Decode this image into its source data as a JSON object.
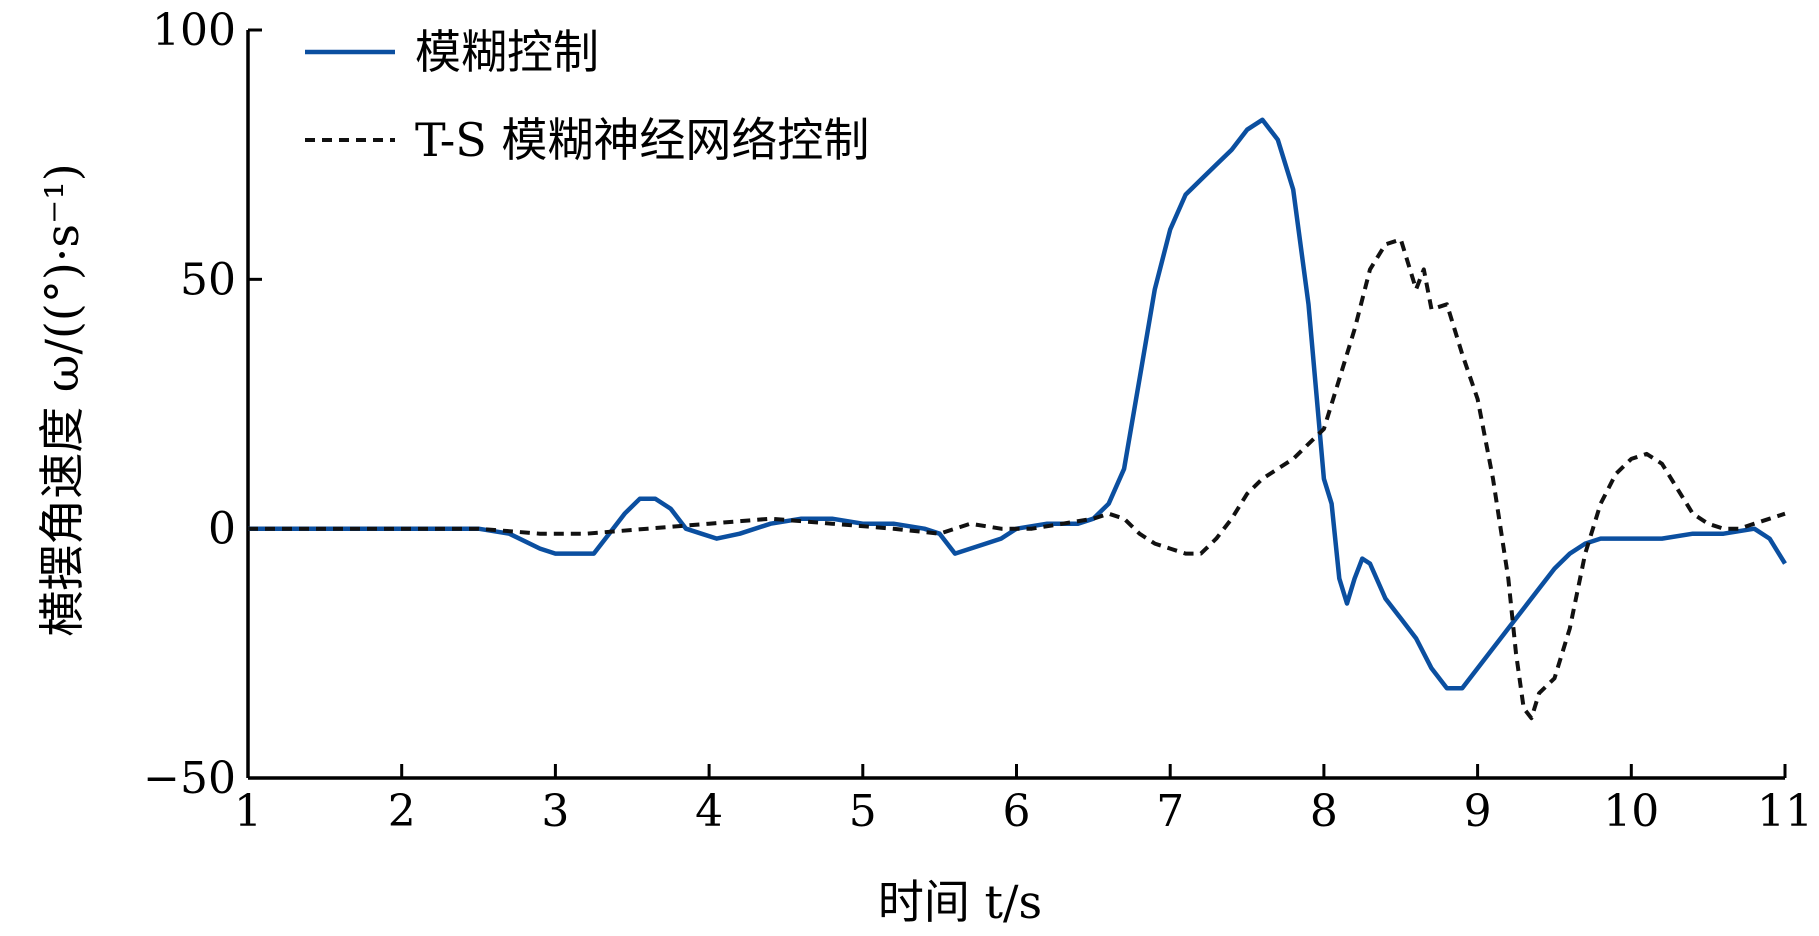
{
  "chart_data": {
    "type": "line",
    "xlabel": "时间 t/s",
    "ylabel": "横摆角速度 ω/((°)·s⁻¹)",
    "xlim": [
      1,
      11
    ],
    "ylim": [
      -50,
      100
    ],
    "xticks": [
      1,
      2,
      3,
      4,
      5,
      6,
      7,
      8,
      9,
      10,
      11
    ],
    "yticks": [
      -50,
      0,
      50,
      100
    ],
    "xtick_labels": [
      "1",
      "2",
      "3",
      "4",
      "5",
      "6",
      "7",
      "8",
      "9",
      "10",
      "11"
    ],
    "ytick_labels": [
      "−50",
      "0",
      "50",
      "100"
    ],
    "grid": false,
    "legend_position": "top-left",
    "series": [
      {
        "name": "模糊控制",
        "color": "#0b4fa0",
        "style": "solid",
        "points": [
          [
            1.0,
            0
          ],
          [
            2.0,
            0
          ],
          [
            2.5,
            0
          ],
          [
            2.7,
            -1
          ],
          [
            2.9,
            -4
          ],
          [
            3.0,
            -5
          ],
          [
            3.15,
            -5
          ],
          [
            3.25,
            -5
          ],
          [
            3.35,
            -1
          ],
          [
            3.45,
            3
          ],
          [
            3.55,
            6
          ],
          [
            3.65,
            6
          ],
          [
            3.75,
            4
          ],
          [
            3.85,
            0
          ],
          [
            3.95,
            -1
          ],
          [
            4.05,
            -2
          ],
          [
            4.2,
            -1
          ],
          [
            4.4,
            1
          ],
          [
            4.6,
            2
          ],
          [
            4.8,
            2
          ],
          [
            5.0,
            1
          ],
          [
            5.2,
            1
          ],
          [
            5.4,
            0
          ],
          [
            5.5,
            -1
          ],
          [
            5.6,
            -5
          ],
          [
            5.7,
            -4
          ],
          [
            5.8,
            -3
          ],
          [
            5.9,
            -2
          ],
          [
            6.0,
            0
          ],
          [
            6.2,
            1
          ],
          [
            6.4,
            1
          ],
          [
            6.5,
            2
          ],
          [
            6.6,
            5
          ],
          [
            6.7,
            12
          ],
          [
            6.8,
            30
          ],
          [
            6.9,
            48
          ],
          [
            7.0,
            60
          ],
          [
            7.1,
            67
          ],
          [
            7.2,
            70
          ],
          [
            7.3,
            73
          ],
          [
            7.4,
            76
          ],
          [
            7.5,
            80
          ],
          [
            7.6,
            82
          ],
          [
            7.7,
            78
          ],
          [
            7.8,
            68
          ],
          [
            7.9,
            45
          ],
          [
            8.0,
            10
          ],
          [
            8.05,
            5
          ],
          [
            8.1,
            -10
          ],
          [
            8.15,
            -15
          ],
          [
            8.2,
            -10
          ],
          [
            8.25,
            -6
          ],
          [
            8.3,
            -7
          ],
          [
            8.4,
            -14
          ],
          [
            8.5,
            -18
          ],
          [
            8.6,
            -22
          ],
          [
            8.7,
            -28
          ],
          [
            8.8,
            -32
          ],
          [
            8.9,
            -32
          ],
          [
            9.0,
            -28
          ],
          [
            9.1,
            -24
          ],
          [
            9.2,
            -20
          ],
          [
            9.3,
            -16
          ],
          [
            9.4,
            -12
          ],
          [
            9.5,
            -8
          ],
          [
            9.6,
            -5
          ],
          [
            9.7,
            -3
          ],
          [
            9.8,
            -2
          ],
          [
            10.0,
            -2
          ],
          [
            10.2,
            -2
          ],
          [
            10.4,
            -1
          ],
          [
            10.6,
            -1
          ],
          [
            10.8,
            0
          ],
          [
            10.9,
            -2
          ],
          [
            11.0,
            -7
          ]
        ]
      },
      {
        "name": "T-S 模糊神经网络控制",
        "color": "#111111",
        "style": "dashed",
        "points": [
          [
            1.0,
            0
          ],
          [
            2.0,
            0
          ],
          [
            2.5,
            0
          ],
          [
            2.9,
            -1
          ],
          [
            3.2,
            -1
          ],
          [
            3.6,
            0
          ],
          [
            4.0,
            1
          ],
          [
            4.4,
            2
          ],
          [
            4.8,
            1
          ],
          [
            5.2,
            0
          ],
          [
            5.5,
            -1
          ],
          [
            5.7,
            1
          ],
          [
            5.9,
            0
          ],
          [
            6.1,
            0
          ],
          [
            6.3,
            1
          ],
          [
            6.5,
            2
          ],
          [
            6.6,
            3
          ],
          [
            6.7,
            2
          ],
          [
            6.8,
            -1
          ],
          [
            6.9,
            -3
          ],
          [
            7.0,
            -4
          ],
          [
            7.1,
            -5
          ],
          [
            7.2,
            -5
          ],
          [
            7.3,
            -2
          ],
          [
            7.4,
            2
          ],
          [
            7.5,
            7
          ],
          [
            7.6,
            10
          ],
          [
            7.7,
            12
          ],
          [
            7.8,
            14
          ],
          [
            7.9,
            17
          ],
          [
            8.0,
            20
          ],
          [
            8.1,
            30
          ],
          [
            8.2,
            40
          ],
          [
            8.3,
            52
          ],
          [
            8.4,
            57
          ],
          [
            8.5,
            58
          ],
          [
            8.6,
            48
          ],
          [
            8.65,
            52
          ],
          [
            8.7,
            44
          ],
          [
            8.8,
            45
          ],
          [
            8.9,
            35
          ],
          [
            9.0,
            26
          ],
          [
            9.1,
            10
          ],
          [
            9.2,
            -10
          ],
          [
            9.25,
            -25
          ],
          [
            9.3,
            -36
          ],
          [
            9.35,
            -38
          ],
          [
            9.4,
            -33
          ],
          [
            9.5,
            -30
          ],
          [
            9.6,
            -20
          ],
          [
            9.7,
            -5
          ],
          [
            9.8,
            5
          ],
          [
            9.9,
            11
          ],
          [
            10.0,
            14
          ],
          [
            10.1,
            15
          ],
          [
            10.2,
            13
          ],
          [
            10.3,
            8
          ],
          [
            10.4,
            3
          ],
          [
            10.5,
            1
          ],
          [
            10.6,
            0
          ],
          [
            10.7,
            0
          ],
          [
            10.8,
            1
          ],
          [
            10.9,
            2
          ],
          [
            11.0,
            3
          ]
        ]
      }
    ]
  }
}
